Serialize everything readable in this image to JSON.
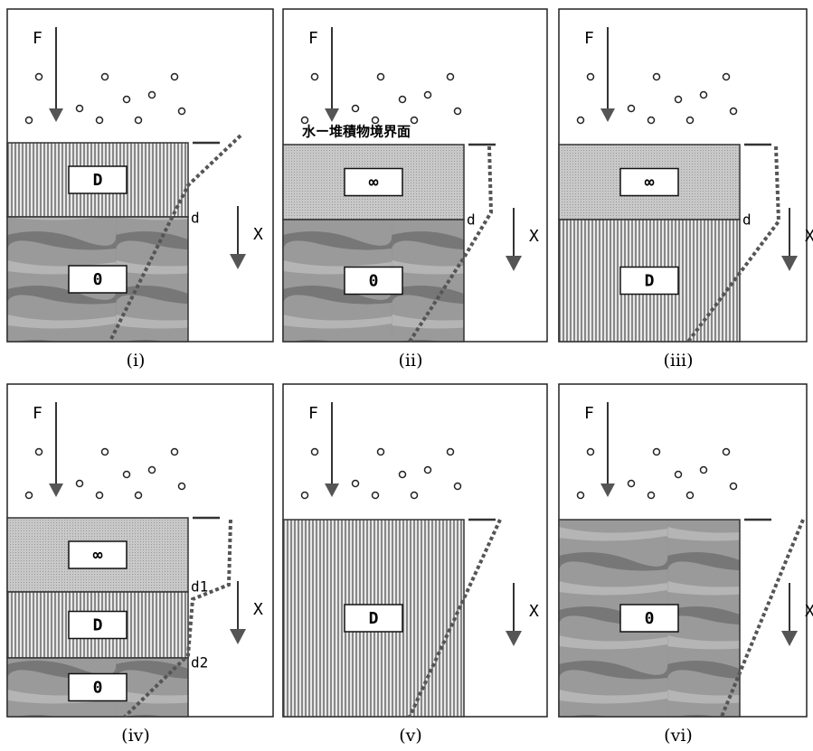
{
  "annotation": "水ー堆積物境界面",
  "panels": [
    {
      "caption": "(i)",
      "force": "F",
      "depth": "X",
      "layers": [
        "D",
        "0"
      ],
      "marks": [
        "d"
      ]
    },
    {
      "caption": "(ii)",
      "force": "F",
      "depth": "X",
      "layers": [
        "∞",
        "0"
      ],
      "marks": [
        "d"
      ]
    },
    {
      "caption": "(iii)",
      "force": "F",
      "depth": "X",
      "layers": [
        "∞",
        "D"
      ],
      "marks": [
        "d"
      ]
    },
    {
      "caption": "(iv)",
      "force": "F",
      "depth": "X",
      "layers": [
        "∞",
        "D",
        "0"
      ],
      "marks": [
        "d1",
        "d2"
      ]
    },
    {
      "caption": "(v)",
      "force": "F",
      "depth": "X",
      "layers": [
        "D"
      ],
      "marks": []
    },
    {
      "caption": "(vi)",
      "force": "F",
      "depth": "X",
      "layers": [
        "0"
      ],
      "marks": []
    }
  ]
}
